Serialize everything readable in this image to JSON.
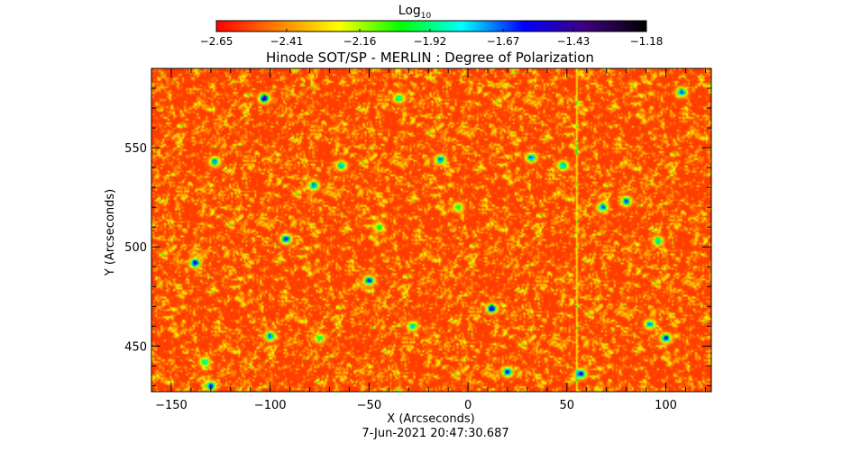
{
  "chart_data": {
    "type": "heatmap",
    "title": "Hinode SOT/SP - MERLIN : Degree of Polarization",
    "xlabel": "X (Arcseconds)",
    "ylabel": "Y (Arcseconds)",
    "timestamp": "7-Jun-2021 20:47:30.687",
    "xlim": [
      -160,
      123
    ],
    "ylim": [
      427,
      590
    ],
    "x_ticks": [
      -150,
      -100,
      -50,
      0,
      50,
      100
    ],
    "x_tick_labels": [
      "−150",
      "−100",
      "−50",
      "0",
      "50",
      "100"
    ],
    "y_ticks": [
      450,
      500,
      550
    ],
    "y_tick_labels": [
      "450",
      "500",
      "550"
    ],
    "colorbar": {
      "label_base": "Log",
      "label_sub": "10",
      "scale": "log10",
      "range": [
        -2.65,
        -1.18
      ],
      "ticks": [
        -2.65,
        -2.41,
        -2.16,
        -1.92,
        -1.67,
        -1.43,
        -1.18
      ],
      "tick_labels": [
        "−2.65",
        "−2.41",
        "−2.16",
        "−1.92",
        "−1.67",
        "−1.43",
        "−1.18"
      ],
      "colormap": [
        "#ff0000",
        "#ff8000",
        "#ffff00",
        "#00ff00",
        "#00ffff",
        "#0000ff",
        "#400080",
        "#000000"
      ]
    },
    "field": {
      "background_value": -2.55,
      "noise_sd": 0.16,
      "vertical_streak_x": 55,
      "clusters": [
        {
          "x": -103,
          "y": 575,
          "v": -1.4
        },
        {
          "x": -78,
          "y": 531,
          "v": -1.6
        },
        {
          "x": -92,
          "y": 504,
          "v": -1.5
        },
        {
          "x": -138,
          "y": 492,
          "v": -1.4
        },
        {
          "x": -50,
          "y": 483,
          "v": -1.5
        },
        {
          "x": -100,
          "y": 455,
          "v": -1.6
        },
        {
          "x": -75,
          "y": 454,
          "v": -1.9
        },
        {
          "x": -133,
          "y": 442,
          "v": -1.8
        },
        {
          "x": -130,
          "y": 430,
          "v": -1.5
        },
        {
          "x": -64,
          "y": 541,
          "v": -1.7
        },
        {
          "x": -128,
          "y": 543,
          "v": -1.7
        },
        {
          "x": -35,
          "y": 575,
          "v": -1.8
        },
        {
          "x": -14,
          "y": 544,
          "v": -1.6
        },
        {
          "x": 12,
          "y": 469,
          "v": -1.4
        },
        {
          "x": 20,
          "y": 437,
          "v": -1.5
        },
        {
          "x": 32,
          "y": 545,
          "v": -1.6
        },
        {
          "x": 48,
          "y": 541,
          "v": -1.7
        },
        {
          "x": 68,
          "y": 520,
          "v": -1.6
        },
        {
          "x": 80,
          "y": 523,
          "v": -1.6
        },
        {
          "x": 57,
          "y": 436,
          "v": -1.4
        },
        {
          "x": 100,
          "y": 454,
          "v": -1.5
        },
        {
          "x": 92,
          "y": 461,
          "v": -1.7
        },
        {
          "x": 108,
          "y": 578,
          "v": -1.6
        },
        {
          "x": 96,
          "y": 503,
          "v": -1.8
        },
        {
          "x": -28,
          "y": 460,
          "v": -1.8
        },
        {
          "x": -5,
          "y": 520,
          "v": -1.9
        },
        {
          "x": -45,
          "y": 510,
          "v": -1.9
        }
      ]
    }
  }
}
